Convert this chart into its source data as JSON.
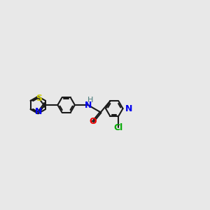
{
  "bg_color": "#e8e8e8",
  "bond_color": "#1a1a1a",
  "S_color": "#cccc00",
  "N_color": "#0000ee",
  "O_color": "#ee0000",
  "Cl_color": "#00aa00",
  "H_color": "#447777",
  "font_size": 8.5,
  "linewidth": 1.5,
  "figsize": [
    3.0,
    3.0
  ],
  "dpi": 100,
  "xlim": [
    0,
    12
  ],
  "ylim": [
    2,
    9
  ]
}
